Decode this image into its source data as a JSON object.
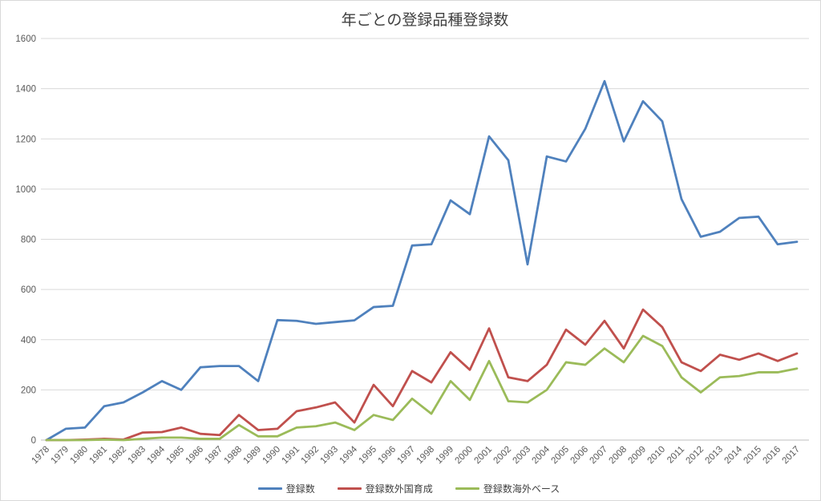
{
  "title": "年ごとの登録品種登録数",
  "colors": {
    "series_blue": "#4f81bd",
    "series_red": "#c0504d",
    "series_green": "#9bbb59",
    "grid": "#d9d9d9",
    "axis": "#bfbfbf",
    "tick_text": "#595959",
    "title_text": "#404040",
    "background": "#ffffff"
  },
  "chart_data": {
    "type": "line",
    "title": "年ごとの登録品種登録数",
    "xlabel": "",
    "ylabel": "",
    "ylim": [
      0,
      1600
    ],
    "ytick_interval": 200,
    "grid": "horizontal",
    "legend_position": "bottom",
    "x": [
      1978,
      1979,
      1980,
      1981,
      1982,
      1983,
      1984,
      1985,
      1986,
      1987,
      1988,
      1989,
      1990,
      1991,
      1992,
      1993,
      1994,
      1995,
      1996,
      1997,
      1998,
      1999,
      2000,
      2001,
      2002,
      2003,
      2004,
      2005,
      2006,
      2007,
      2008,
      2009,
      2010,
      2011,
      2012,
      2013,
      2014,
      2015,
      2016,
      2017
    ],
    "series": [
      {
        "name": "登録数",
        "color": "#4f81bd",
        "values": [
          0,
          45,
          50,
          135,
          150,
          190,
          235,
          200,
          290,
          295,
          295,
          235,
          478,
          475,
          463,
          470,
          477,
          530,
          535,
          775,
          780,
          955,
          900,
          1210,
          1115,
          700,
          1130,
          1110,
          1240,
          1430,
          1190,
          1350,
          1270,
          960,
          810,
          830,
          885,
          890,
          780,
          790
        ]
      },
      {
        "name": "登録数外国育成",
        "color": "#c0504d",
        "values": [
          0,
          0,
          2,
          5,
          2,
          30,
          32,
          50,
          25,
          20,
          100,
          40,
          45,
          115,
          130,
          150,
          70,
          220,
          135,
          275,
          230,
          350,
          280,
          445,
          250,
          235,
          300,
          440,
          380,
          475,
          365,
          520,
          450,
          310,
          275,
          340,
          320,
          345,
          315,
          345
        ]
      },
      {
        "name": "登録数海外ベース",
        "color": "#9bbb59",
        "values": [
          0,
          0,
          0,
          2,
          0,
          5,
          10,
          10,
          5,
          5,
          60,
          15,
          15,
          50,
          55,
          70,
          40,
          100,
          80,
          165,
          105,
          235,
          160,
          315,
          155,
          150,
          200,
          310,
          300,
          365,
          310,
          415,
          375,
          250,
          190,
          250,
          255,
          270,
          270,
          285
        ]
      }
    ]
  }
}
